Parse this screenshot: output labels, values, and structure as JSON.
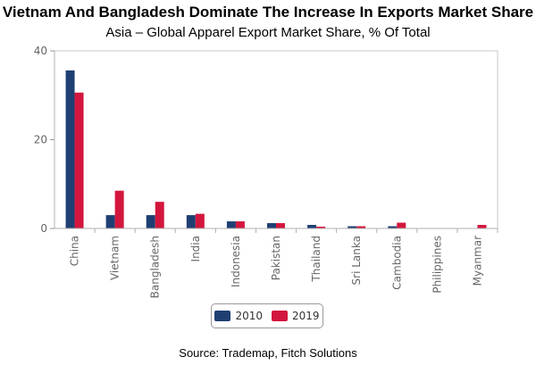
{
  "chart_data": {
    "type": "bar",
    "title": "Vietnam And Bangladesh Dominate The Increase In Exports Market Share",
    "subtitle": "Asia – Global Apparel Export Market Share, % Of Total",
    "categories": [
      "China",
      "Vietnam",
      "Bangladesh",
      "India",
      "Indonesia",
      "Pakistan",
      "Thailand",
      "Sri Lanka",
      "Cambodia",
      "Philippines",
      "Myanmar"
    ],
    "series": [
      {
        "name": "2010",
        "color": "#1f3f73",
        "values": [
          35.6,
          3.0,
          3.0,
          3.0,
          1.6,
          1.2,
          0.8,
          0.5,
          0.5,
          0.1,
          0.1
        ]
      },
      {
        "name": "2019",
        "color": "#d3163d",
        "values": [
          30.6,
          8.5,
          6.0,
          3.3,
          1.6,
          1.2,
          0.4,
          0.5,
          1.3,
          0.1,
          0.8
        ]
      }
    ],
    "yticks": [
      0,
      20,
      40
    ],
    "ylim": [
      0,
      40
    ],
    "legend": "bottom-center",
    "grid": false
  },
  "source": "Source: Trademap, Fitch Solutions"
}
